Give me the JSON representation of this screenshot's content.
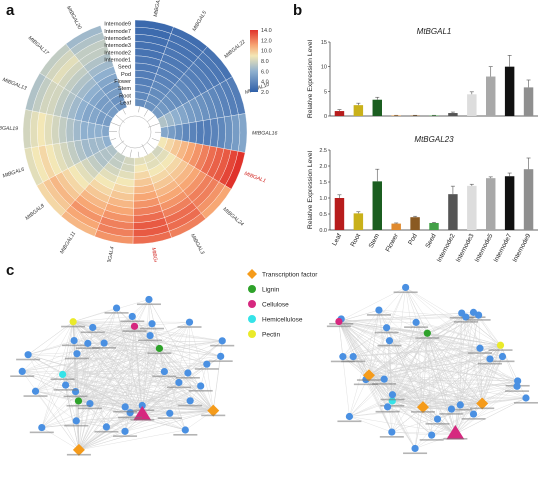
{
  "panels": {
    "a": "a",
    "b": "b",
    "c": "c"
  },
  "heatmap": {
    "tissues": [
      "Internode9",
      "Internode7",
      "Internode5",
      "Internode3",
      "Internode2",
      "Internode1",
      "Seed",
      "Pod",
      "Flower",
      "Stem",
      "Root",
      "Leaf"
    ],
    "genes": [
      {
        "name": "MtBGAL2",
        "highlight": false
      },
      {
        "name": "MtBGAL5",
        "highlight": false
      },
      {
        "name": "MtBGAL22",
        "highlight": false
      },
      {
        "name": "MtBGAL10",
        "highlight": false
      },
      {
        "name": "MtBGAL16",
        "highlight": false
      },
      {
        "name": "MtBGAL1",
        "highlight": true
      },
      {
        "name": "MtBGAL24",
        "highlight": false
      },
      {
        "name": "MtBGAL3",
        "highlight": false
      },
      {
        "name": "MtBGAL23",
        "highlight": true
      },
      {
        "name": "MtBGAL4",
        "highlight": false
      },
      {
        "name": "MtBGAL11",
        "highlight": false
      },
      {
        "name": "MtBGAL8",
        "highlight": false
      },
      {
        "name": "MtBGAL6",
        "highlight": false
      },
      {
        "name": "MtBGAL19",
        "highlight": false
      },
      {
        "name": "MtBGAL13",
        "highlight": false
      },
      {
        "name": "MtBGAL17",
        "highlight": false
      },
      {
        "name": "MtBGAL20",
        "highlight": false
      }
    ],
    "values": [
      [
        2.5,
        2.6,
        2.8,
        2.9,
        3.0,
        3.2,
        3.3,
        3.5,
        3.6,
        3.8,
        4.0,
        4.2
      ],
      [
        2.7,
        2.9,
        3.0,
        3.2,
        3.3,
        3.5,
        3.6,
        3.8,
        4.0,
        4.2,
        4.3,
        4.5
      ],
      [
        3.0,
        3.2,
        3.3,
        3.5,
        3.6,
        3.8,
        4.0,
        4.2,
        4.3,
        4.5,
        4.8,
        5.0
      ],
      [
        3.5,
        3.6,
        3.8,
        4.0,
        4.2,
        4.5,
        4.8,
        5.0,
        5.5,
        6.0,
        6.5,
        7.0
      ],
      [
        5.5,
        5.0,
        4.5,
        4.0,
        3.8,
        3.5,
        3.5,
        3.8,
        4.0,
        4.5,
        5.0,
        5.5
      ],
      [
        14.0,
        13.5,
        13.0,
        12.8,
        12.5,
        12.0,
        11.5,
        11.0,
        10.5,
        10.0,
        9.5,
        9.0
      ],
      [
        11.0,
        11.5,
        12.0,
        12.0,
        11.5,
        11.0,
        10.5,
        10.0,
        9.5,
        9.0,
        8.5,
        8.0
      ],
      [
        12.0,
        12.5,
        12.5,
        12.0,
        11.5,
        11.0,
        10.5,
        10.0,
        9.5,
        9.0,
        8.5,
        8.5
      ],
      [
        12.5,
        13.0,
        13.0,
        12.5,
        12.0,
        11.5,
        11.0,
        10.5,
        10.0,
        9.5,
        9.0,
        8.5
      ],
      [
        11.5,
        12.0,
        12.0,
        11.5,
        11.0,
        10.5,
        10.0,
        9.5,
        9.0,
        8.5,
        8.0,
        8.0
      ],
      [
        10.5,
        11.0,
        11.5,
        11.0,
        10.5,
        10.0,
        9.5,
        9.0,
        8.5,
        8.0,
        7.5,
        7.5
      ],
      [
        9.5,
        10.0,
        10.5,
        10.0,
        9.5,
        9.0,
        8.5,
        8.0,
        7.5,
        7.0,
        7.0,
        7.0
      ],
      [
        8.5,
        9.0,
        9.5,
        9.0,
        8.5,
        8.0,
        7.5,
        7.0,
        6.5,
        6.5,
        6.5,
        6.0
      ],
      [
        8.0,
        8.5,
        9.0,
        8.5,
        8.0,
        7.5,
        7.0,
        6.5,
        6.0,
        6.0,
        6.0,
        5.5
      ],
      [
        7.0,
        7.5,
        8.0,
        8.0,
        7.5,
        7.0,
        6.5,
        6.0,
        5.5,
        5.5,
        5.0,
        5.0
      ],
      [
        7.5,
        8.0,
        8.5,
        8.0,
        7.5,
        7.0,
        6.5,
        6.0,
        5.5,
        5.0,
        5.0,
        5.0
      ],
      [
        6.5,
        7.0,
        7.5,
        7.5,
        7.0,
        6.5,
        6.0,
        5.5,
        5.0,
        5.0,
        4.5,
        4.5
      ]
    ]
  },
  "colorbar": {
    "ticks": [
      "14.0",
      "12.0",
      "10.0",
      "8.0",
      "6.0",
      "4.0",
      "2.0"
    ],
    "min": 2.0,
    "max": 14.0
  },
  "chart_data": [
    {
      "type": "bar",
      "title": "MtBGAL1",
      "ylabel": "Relative Expression Level",
      "ylim": [
        0,
        15
      ],
      "yticks": [
        "15",
        "10",
        "5",
        "0"
      ],
      "categories": [
        "Leaf",
        "Root",
        "Stem",
        "Flower",
        "Pod",
        "Seed",
        "Internode2",
        "Internode3",
        "Internode5",
        "Internode7",
        "Internode9"
      ],
      "values": [
        1.0,
        2.2,
        3.3,
        0.1,
        0.1,
        0.1,
        0.6,
        4.4,
        8.0,
        10.0,
        5.8
      ],
      "errors": [
        0.3,
        0.4,
        0.5,
        0.05,
        0.05,
        0.05,
        0.2,
        0.5,
        2.0,
        2.3,
        1.5
      ],
      "colors": [
        "#b71c1c",
        "#c9b11a",
        "#1b5e20",
        "#e08a2e",
        "#8a5a22",
        "#43a047",
        "#555555",
        "#dddddd",
        "#a8a8a8",
        "#111111",
        "#8f8f8f"
      ]
    },
    {
      "type": "bar",
      "title": "MtBGAL23",
      "ylabel": "Relative Expression Level",
      "ylim": [
        0,
        2.5
      ],
      "yticks": [
        "2.5",
        "2.0",
        "1.5",
        "1.0",
        "0.5",
        "0.0"
      ],
      "categories": [
        "Leaf",
        "Root",
        "Stem",
        "Flower",
        "Pod",
        "Seed",
        "Internode2",
        "Internode3",
        "Internode5",
        "Internode7",
        "Internode9"
      ],
      "values": [
        1.0,
        0.52,
        1.52,
        0.2,
        0.4,
        0.22,
        1.12,
        1.38,
        1.62,
        1.68,
        1.9
      ],
      "errors": [
        0.1,
        0.05,
        0.38,
        0.02,
        0.03,
        0.02,
        0.25,
        0.05,
        0.04,
        0.1,
        0.35
      ],
      "colors": [
        "#b71c1c",
        "#c9b11a",
        "#1b5e20",
        "#e08a2e",
        "#8a5a22",
        "#43a047",
        "#555555",
        "#dddddd",
        "#a8a8a8",
        "#111111",
        "#8f8f8f"
      ]
    }
  ],
  "legend": {
    "items": [
      {
        "label": "Transcription factor",
        "shape": "diamond",
        "color": "#f59b1a"
      },
      {
        "label": "Lignin",
        "shape": "circle",
        "color": "#2ea22a"
      },
      {
        "label": "Cellulose",
        "shape": "circle",
        "color": "#d6287f"
      },
      {
        "label": "Hemicellulose",
        "shape": "circle",
        "color": "#35e3e8"
      },
      {
        "label": "Pectin",
        "shape": "circle",
        "color": "#eaea2a"
      }
    ]
  },
  "network_colors": {
    "default": "#4a90e2",
    "edge": "#c8c8c8",
    "tf": "#f59b1a",
    "hub": "#d6287f"
  }
}
